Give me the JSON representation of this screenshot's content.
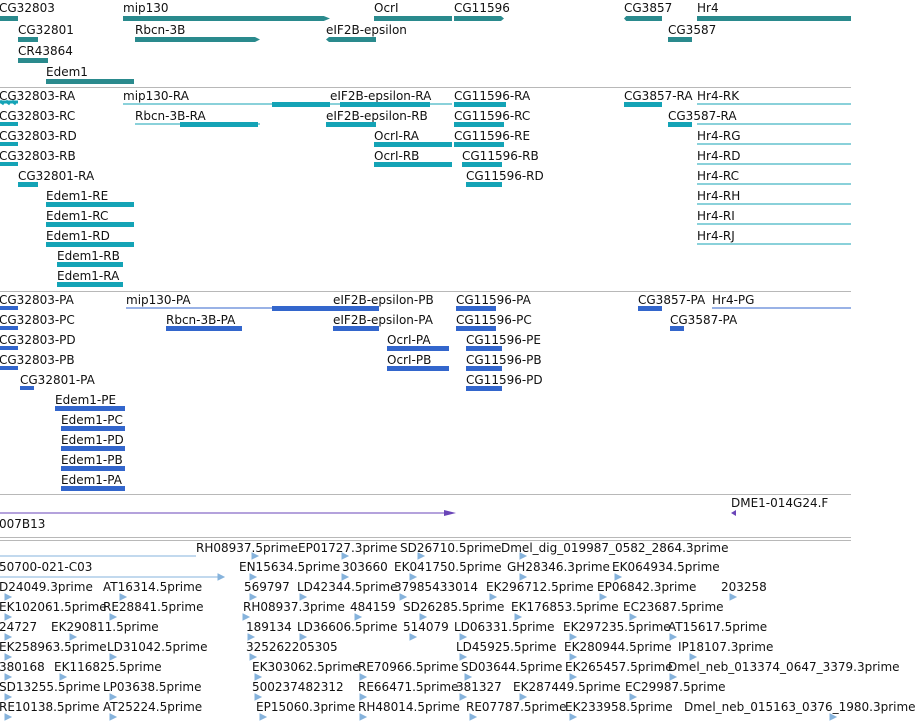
{
  "colors": {
    "gene": "#2a8a8d",
    "transcript": "#14a3b6",
    "cds": "#3366cc",
    "clone": "#6a45b8",
    "est": "#86b3dc",
    "divider": "#b8b8b8",
    "text": "#111111"
  },
  "tracks": {
    "gene": {
      "labels": [
        "CG32803",
        "mip130",
        "OcrI",
        "CG11596",
        "CG3857",
        "Hr4",
        "CG32801",
        "Rbcn-3B",
        "eIF2B-epsilon",
        "CG3587",
        "CR43864",
        "Edem1"
      ]
    },
    "transcript": {
      "labels": [
        "CG32803-RA",
        "mip130-RA",
        "eIF2B-epsilon-RA",
        "CG11596-RA",
        "CG3857-RA",
        "Hr4-RK",
        "CG32803-RC",
        "Rbcn-3B-RA",
        "eIF2B-epsilon-RB",
        "CG11596-RC",
        "CG3587-RA",
        "CG32803-RD",
        "OcrI-RA",
        "CG11596-RE",
        "Hr4-RG",
        "CG32803-RB",
        "OcrI-RB",
        "CG11596-RB",
        "Hr4-RD",
        "CG32801-RA",
        "CG11596-RD",
        "Hr4-RC",
        "Edem1-RE",
        "Hr4-RH",
        "Edem1-RC",
        "Hr4-RI",
        "Edem1-RD",
        "Hr4-RJ",
        "Edem1-RB",
        "Edem1-RA"
      ]
    },
    "cds": {
      "labels": [
        "CG32803-PA",
        "mip130-PA",
        "eIF2B-epsilon-PB",
        "CG11596-PA",
        "CG3857-PA",
        "Hr4-PG",
        "CG32803-PC",
        "Rbcn-3B-PA",
        "eIF2B-epsilon-PA",
        "CG11596-PC",
        "CG3587-PA",
        "CG32803-PD",
        "OcrI-PA",
        "CG11596-PE",
        "CG32803-PB",
        "OcrI-PB",
        "CG11596-PB",
        "CG32801-PA",
        "CG11596-PD",
        "Edem1-PE",
        "Edem1-PC",
        "Edem1-PD",
        "Edem1-PB",
        "Edem1-PA"
      ]
    },
    "clone": {
      "labels": [
        "DME1-014G24.F",
        "007B13"
      ]
    },
    "est": {
      "labels": [
        "RH08937.5prime",
        "EP01727.3prime",
        "SD26710.5prime",
        "Dmel_dig_019987_0582_2864.3prime",
        "50700-021-C03",
        "EN15634.5prime",
        "303660",
        "EK041750.5prime",
        "GH28346.3prime",
        "EK064934.5prime",
        "D24049.3prime",
        "AT16314.5prime",
        "569797",
        "LD42344.5prime",
        "37985433014",
        "EK296712.5prime",
        "EP06842.3prime",
        "203258",
        "EK102061.5prime",
        "RE28841.5prime",
        "RH08937.3prime",
        "484159",
        "SD26285.5prime",
        "EK176853.5prime",
        "EC23687.5prime",
        "24727",
        "EK290811.5prime",
        "189134",
        "LD36606.5prime",
        "514079",
        "LD06331.5prime",
        "EK297235.5prime",
        "AT15617.5prime",
        "EK258963.5prime",
        "LD31042.5prime",
        "325262205305",
        "LD45925.5prime",
        "EK280944.5prime",
        "IP18107.3prime",
        "380168",
        "EK116825.5prime",
        "EK303062.5prime",
        "RE70966.5prime",
        "SD03644.5prime",
        "EK265457.5prime",
        "Dmel_neb_013374_0647_3379.3prime",
        "SD13255.5prime",
        "LP03638.5prime",
        "500237482312",
        "RE66471.5prime",
        "381327",
        "EK287449.5prime",
        "EC29987.5prime",
        "RE10138.5prime",
        "AT25224.5prime",
        "EP15060.3prime",
        "RH48014.5prime",
        "RE07787.5prime",
        "EK233958.5prime",
        "Dmel_neb_015163_0376_1980.3prime"
      ]
    }
  }
}
